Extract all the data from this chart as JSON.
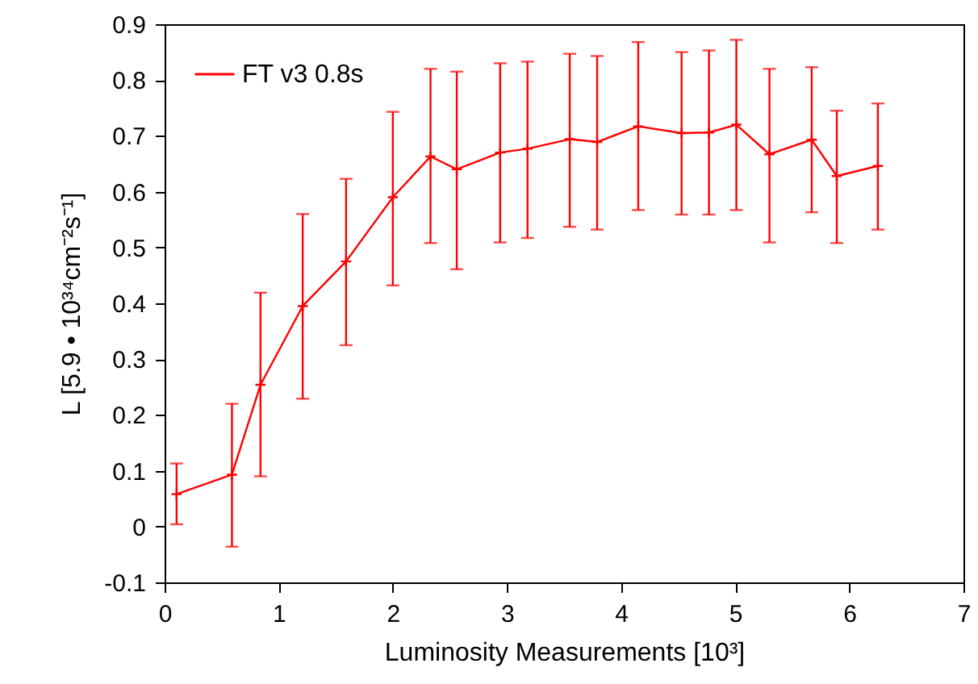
{
  "chart_data": {
    "type": "line",
    "xlabel": "Luminosity Measurements [10³]",
    "ylabel": "L [5.9 • 10³⁴cm⁻²s⁻¹]",
    "x": [
      0.105,
      0.59,
      0.84,
      1.21,
      1.59,
      2.0,
      2.33,
      2.56,
      2.94,
      3.18,
      3.55,
      3.79,
      4.15,
      4.53,
      4.77,
      5.01,
      5.3,
      5.67,
      5.89,
      6.25
    ],
    "series": [
      {
        "name": "FT v3 0.8s",
        "color": "#ff0000",
        "values": [
          0.058,
          0.093,
          0.254,
          0.395,
          0.475,
          0.59,
          0.663,
          0.64,
          0.67,
          0.677,
          0.694,
          0.689,
          0.717,
          0.705,
          0.706,
          0.72,
          0.667,
          0.693,
          0.628,
          0.646
        ],
        "errors": [
          [
            0.004,
            0.113
          ],
          [
            -0.036,
            0.22
          ],
          [
            0.09,
            0.419
          ],
          [
            0.229,
            0.56
          ],
          [
            0.325,
            0.623
          ],
          [
            0.432,
            0.743
          ],
          [
            0.508,
            0.82
          ],
          [
            0.461,
            0.815
          ],
          [
            0.509,
            0.83
          ],
          [
            0.517,
            0.833
          ],
          [
            0.537,
            0.847
          ],
          [
            0.532,
            0.843
          ],
          [
            0.567,
            0.868
          ],
          [
            0.559,
            0.85
          ],
          [
            0.559,
            0.853
          ],
          [
            0.567,
            0.872
          ],
          [
            0.509,
            0.82
          ],
          [
            0.563,
            0.823
          ],
          [
            0.508,
            0.745
          ],
          [
            0.532,
            0.758
          ]
        ]
      }
    ],
    "xlim": [
      0,
      7
    ],
    "xticks": [
      0,
      1,
      2,
      3,
      4,
      5,
      6,
      7
    ],
    "ylim": [
      -0.1,
      0.9
    ],
    "yticks": [
      -0.1,
      0,
      0.1,
      0.2,
      0.3,
      0.4,
      0.5,
      0.6,
      0.7,
      0.8,
      0.9
    ],
    "grid": false,
    "legend": "top left",
    "marker": "cross",
    "line_style": "solid"
  }
}
